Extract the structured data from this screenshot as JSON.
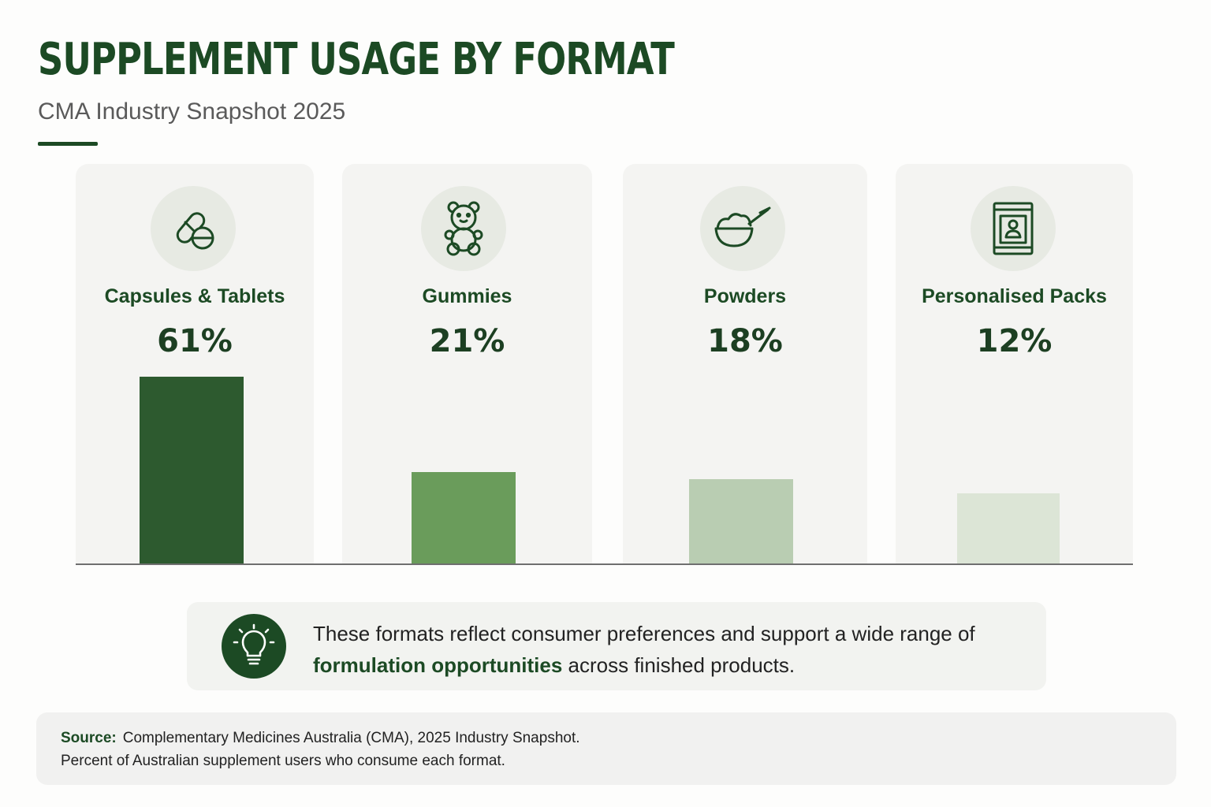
{
  "header": {
    "title": "SUPPLEMENT USAGE BY FORMAT",
    "subtitle": "CMA Industry Snapshot 2025"
  },
  "chart_data": {
    "type": "bar",
    "title": "SUPPLEMENT USAGE BY FORMAT",
    "subtitle": "CMA Industry Snapshot 2025",
    "categories": [
      "Capsules & Tablets",
      "Gummies",
      "Powders",
      "Personalised Packs"
    ],
    "values": [
      61,
      21,
      18,
      12
    ],
    "value_labels": [
      "61%",
      "21%",
      "18%",
      "12%"
    ],
    "unit": "%",
    "icons": [
      "pill-capsule-icon",
      "gummy-bear-icon",
      "powder-bowl-scoop-icon",
      "personalised-pack-icon"
    ],
    "colors": [
      "#2d5a2f",
      "#6a9c5b",
      "#b9cdb2",
      "#dce5d6"
    ],
    "xlabel": "",
    "ylabel": "",
    "grid": false,
    "legend": "none"
  },
  "insight": {
    "icon": "lightbulb-icon",
    "text_before": "These formats reflect consumer preferences and support a wide range of ",
    "text_highlight": "formulation opportunities",
    "text_after": " across finished products."
  },
  "source": {
    "label": "Source:",
    "citation": "Complementary Medicines Australia (CMA), 2025 Industry Snapshot.",
    "note": "Percent of Australian supplement users who consume each format."
  }
}
